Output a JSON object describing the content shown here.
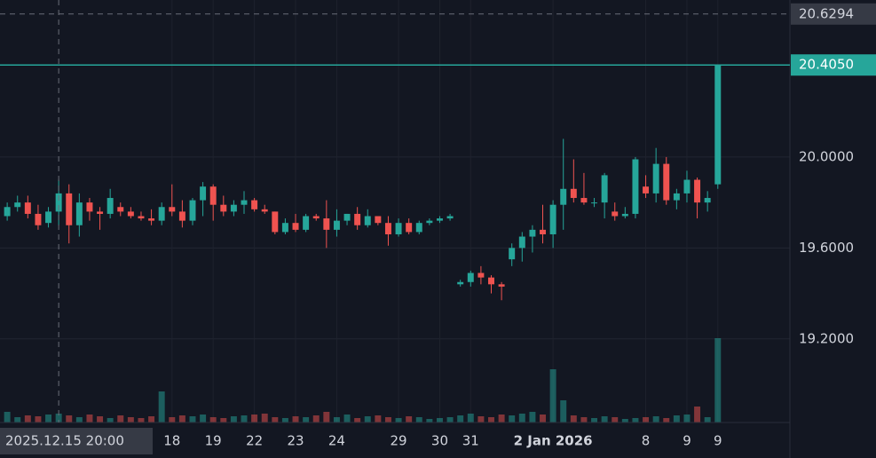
{
  "chart_data": {
    "type": "candlestick",
    "open": [
      19.74,
      19.78,
      19.8,
      19.75,
      19.71,
      19.76,
      19.84,
      19.7,
      19.8,
      19.76,
      19.75,
      19.78,
      19.76,
      19.74,
      19.73,
      19.72,
      19.78,
      19.76,
      19.72,
      19.81,
      19.87,
      19.79,
      19.76,
      19.79,
      19.81,
      19.77,
      19.76,
      19.67,
      19.71,
      19.68,
      19.74,
      19.73,
      19.68,
      19.72,
      19.75,
      19.7,
      19.74,
      19.71,
      19.66,
      19.71,
      19.67,
      19.71,
      19.72,
      19.73,
      19.44,
      19.45,
      19.49,
      19.47,
      19.44,
      19.55,
      19.6,
      19.65,
      19.68,
      19.66,
      19.79,
      19.86,
      19.82,
      19.8,
      19.8,
      19.76,
      19.74,
      19.75,
      19.87,
      19.84,
      19.97,
      19.81,
      19.84,
      19.9,
      19.8,
      19.88
    ],
    "high": [
      19.8,
      19.83,
      19.83,
      19.79,
      19.78,
      19.9,
      19.88,
      19.84,
      19.82,
      19.78,
      19.86,
      19.8,
      19.78,
      19.76,
      19.77,
      19.8,
      19.88,
      19.81,
      19.82,
      19.89,
      19.88,
      19.83,
      19.81,
      19.85,
      19.82,
      19.79,
      19.76,
      19.73,
      19.75,
      19.75,
      19.75,
      19.81,
      19.77,
      19.75,
      19.78,
      19.77,
      19.74,
      19.74,
      19.73,
      19.73,
      19.72,
      19.73,
      19.74,
      19.75,
      19.46,
      19.5,
      19.52,
      19.48,
      19.45,
      19.62,
      19.67,
      19.7,
      19.79,
      19.81,
      20.08,
      19.99,
      19.93,
      19.82,
      19.93,
      19.8,
      19.78,
      20.0,
      19.92,
      20.04,
      20.0,
      19.86,
      19.94,
      19.91,
      19.85,
      20.405
    ],
    "low": [
      19.72,
      19.76,
      19.73,
      19.68,
      19.69,
      19.7,
      19.62,
      19.65,
      19.72,
      19.68,
      19.73,
      19.74,
      19.73,
      19.72,
      19.7,
      19.7,
      19.74,
      19.69,
      19.7,
      19.74,
      19.72,
      19.74,
      19.74,
      19.75,
      19.76,
      19.75,
      19.66,
      19.66,
      19.67,
      19.67,
      19.72,
      19.6,
      19.65,
      19.7,
      19.68,
      19.69,
      19.7,
      19.61,
      19.65,
      19.66,
      19.66,
      19.7,
      19.71,
      19.72,
      19.43,
      19.43,
      19.44,
      19.4,
      19.37,
      19.52,
      19.54,
      19.58,
      19.62,
      19.6,
      19.68,
      19.8,
      19.79,
      19.78,
      19.73,
      19.72,
      19.73,
      19.73,
      19.82,
      19.8,
      19.79,
      19.77,
      19.8,
      19.73,
      19.76,
      19.86
    ],
    "close": [
      19.78,
      19.8,
      19.75,
      19.7,
      19.76,
      19.84,
      19.7,
      19.8,
      19.76,
      19.75,
      19.82,
      19.76,
      19.74,
      19.73,
      19.72,
      19.78,
      19.76,
      19.72,
      19.81,
      19.87,
      19.79,
      19.76,
      19.79,
      19.81,
      19.77,
      19.76,
      19.67,
      19.71,
      19.68,
      19.74,
      19.73,
      19.68,
      19.72,
      19.75,
      19.7,
      19.74,
      19.71,
      19.66,
      19.71,
      19.67,
      19.71,
      19.72,
      19.73,
      19.74,
      19.45,
      19.49,
      19.47,
      19.44,
      19.43,
      19.6,
      19.65,
      19.68,
      19.66,
      19.79,
      19.86,
      19.82,
      19.8,
      19.8,
      19.92,
      19.74,
      19.75,
      19.99,
      19.84,
      19.97,
      19.81,
      19.84,
      19.9,
      19.8,
      19.82,
      20.405
    ],
    "volume": [
      12,
      6,
      8,
      7,
      9,
      10,
      8,
      6,
      9,
      7,
      5,
      8,
      6,
      5,
      7,
      35,
      6,
      8,
      7,
      9,
      6,
      5,
      7,
      8,
      9,
      10,
      6,
      5,
      7,
      6,
      8,
      12,
      6,
      9,
      5,
      7,
      8,
      6,
      5,
      7,
      6,
      4,
      5,
      6,
      8,
      10,
      7,
      6,
      9,
      8,
      10,
      12,
      9,
      60,
      25,
      8,
      6,
      5,
      7,
      6,
      4,
      5,
      6,
      7,
      5,
      8,
      9,
      18,
      6,
      95
    ],
    "ylim": [
      18.832,
      20.691
    ],
    "yticks": [
      {
        "value": 19.2,
        "label": "19.2000"
      },
      {
        "value": 19.6,
        "label": "19.6000"
      },
      {
        "value": 20.0,
        "label": "20.0000"
      }
    ],
    "xlim": [
      -0.7,
      76
    ],
    "xticks": [
      {
        "value": 16,
        "label": "18"
      },
      {
        "value": 20,
        "label": "19"
      },
      {
        "value": 24,
        "label": "22"
      },
      {
        "value": 28,
        "label": "23"
      },
      {
        "value": 32,
        "label": "24"
      },
      {
        "value": 38,
        "label": "29"
      },
      {
        "value": 42,
        "label": "30"
      },
      {
        "value": 45,
        "label": "31"
      },
      {
        "value": 53,
        "label": "2 Jan 2026"
      },
      {
        "value": 62,
        "label": "8"
      },
      {
        "value": 66,
        "label": "9"
      },
      {
        "value": 69,
        "label": "9"
      }
    ],
    "price_line": {
      "value": 20.405,
      "label": "20.4050"
    },
    "crosshair": {
      "x": 5,
      "x_label": "2025.12.15 20:00",
      "y": 20.6294,
      "y_label": "20.6294"
    },
    "up_color": "#26a69a",
    "down_color": "#ef5350"
  }
}
